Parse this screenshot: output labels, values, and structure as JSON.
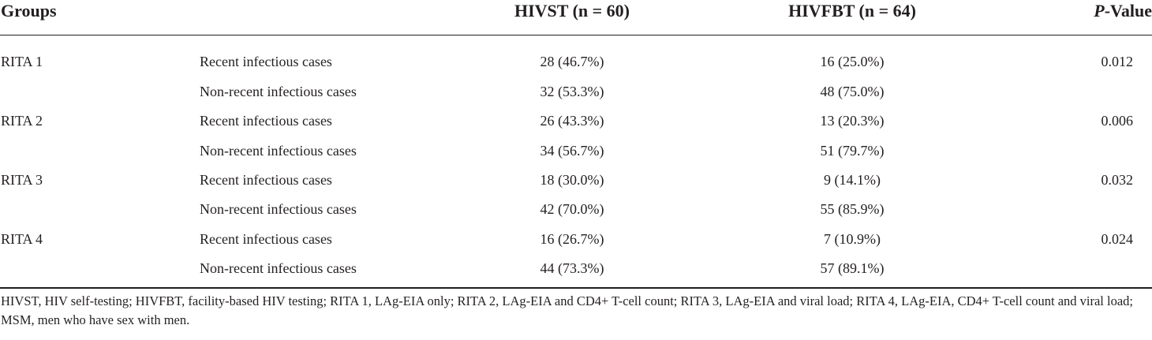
{
  "table": {
    "headers": {
      "groups": "Groups",
      "hivst": "HIVST (n = 60)",
      "hivfbt": "HIVFBT (n = 64)",
      "p_italic": "P",
      "p_rest": "-Value"
    },
    "rows": [
      {
        "group": "RITA 1",
        "subgroup": "Recent infectious cases",
        "hivst": "28 (46.7%)",
        "hivfbt": "16 (25.0%)",
        "p": "0.012"
      },
      {
        "group": "",
        "subgroup": "Non-recent infectious cases",
        "hivst": "32 (53.3%)",
        "hivfbt": "48 (75.0%)",
        "p": ""
      },
      {
        "group": "RITA 2",
        "subgroup": "Recent infectious cases",
        "hivst": "26 (43.3%)",
        "hivfbt": "13 (20.3%)",
        "p": "0.006"
      },
      {
        "group": "",
        "subgroup": "Non-recent infectious cases",
        "hivst": "34 (56.7%)",
        "hivfbt": "51 (79.7%)",
        "p": ""
      },
      {
        "group": "RITA 3",
        "subgroup": "Recent infectious cases",
        "hivst": "18 (30.0%)",
        "hivfbt": "9 (14.1%)",
        "p": "0.032"
      },
      {
        "group": "",
        "subgroup": "Non-recent infectious cases",
        "hivst": "42 (70.0%)",
        "hivfbt": "55 (85.9%)",
        "p": ""
      },
      {
        "group": "RITA 4",
        "subgroup": "Recent infectious cases",
        "hivst": "16 (26.7%)",
        "hivfbt": "7 (10.9%)",
        "p": "0.024"
      },
      {
        "group": "",
        "subgroup": "Non-recent infectious cases",
        "hivst": "44 (73.3%)",
        "hivfbt": "57 (89.1%)",
        "p": ""
      }
    ]
  },
  "footnote": "HIVST, HIV self-testing; HIVFBT, facility-based HIV testing; RITA 1, LAg-EIA only; RITA 2, LAg-EIA and CD4+ T-cell count; RITA 3, LAg-EIA and viral load; RITA 4, LAg-EIA, CD4+ T-cell count and viral load; MSM, men who have sex with men."
}
